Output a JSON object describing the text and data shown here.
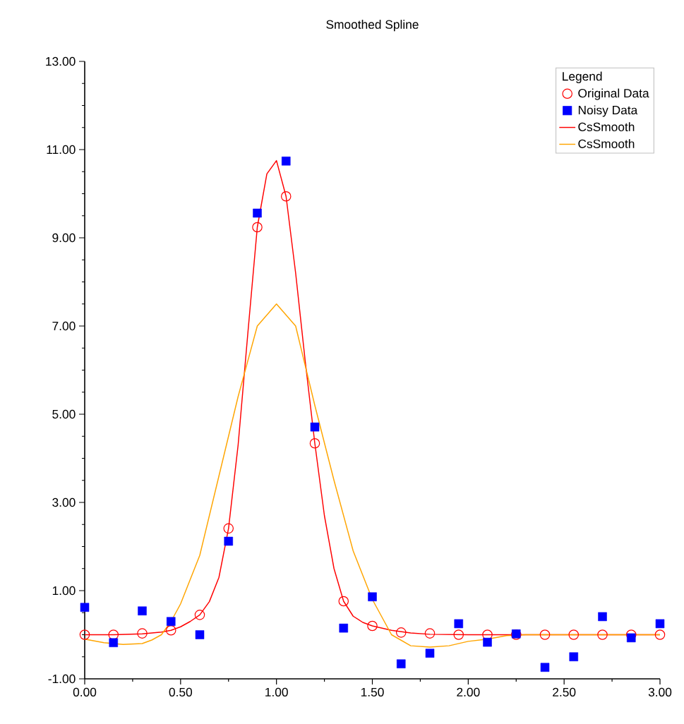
{
  "chart_data": {
    "type": "scatter",
    "title": "Smoothed Spline",
    "legend_title": "Legend",
    "legend": "top right",
    "xlim": [
      0,
      3
    ],
    "ylim": [
      -1,
      13
    ],
    "xticks": [
      {
        "value": 0,
        "label": "0.00"
      },
      {
        "value": 0.5,
        "label": "0.50"
      },
      {
        "value": 1,
        "label": "1.00"
      },
      {
        "value": 1.5,
        "label": "1.50"
      },
      {
        "value": 2,
        "label": "2.00"
      },
      {
        "value": 2.5,
        "label": "2.50"
      },
      {
        "value": 3,
        "label": "3.00"
      }
    ],
    "yticks": [
      {
        "value": -1,
        "label": "-1.00"
      },
      {
        "value": 1,
        "label": "1.00"
      },
      {
        "value": 3,
        "label": "3.00"
      },
      {
        "value": 5,
        "label": "5.00"
      },
      {
        "value": 7,
        "label": "7.00"
      },
      {
        "value": 9,
        "label": "9.00"
      },
      {
        "value": 11,
        "label": "11.00"
      },
      {
        "value": 13,
        "label": "13.00"
      }
    ],
    "series": [
      {
        "name": "Original Data",
        "marker": "circle",
        "color": "#ff0000",
        "x": [
          0,
          0.15,
          0.3,
          0.45,
          0.6,
          0.75,
          0.9,
          1.05,
          1.2,
          1.35,
          1.5,
          1.65,
          1.8,
          1.95,
          2.1,
          2.25,
          2.4,
          2.55,
          2.7,
          2.85,
          3.0
        ],
        "values": [
          0,
          0,
          0.03,
          0.1,
          0.45,
          2.41,
          9.24,
          9.94,
          4.34,
          0.76,
          0.2,
          0.05,
          0.03,
          0,
          0,
          0,
          0,
          0,
          0,
          0,
          0
        ]
      },
      {
        "name": "Noisy Data",
        "marker": "square",
        "color": "#0000ff",
        "x": [
          0,
          0.15,
          0.3,
          0.45,
          0.6,
          0.75,
          0.9,
          1.05,
          1.2,
          1.35,
          1.5,
          1.65,
          1.8,
          1.95,
          2.1,
          2.25,
          2.4,
          2.55,
          2.7,
          2.85,
          3.0
        ],
        "values": [
          0.62,
          -0.18,
          0.54,
          0.3,
          0,
          2.12,
          9.56,
          10.74,
          4.71,
          0.15,
          0.86,
          -0.66,
          -0.42,
          0.25,
          -0.17,
          0.02,
          -0.74,
          -0.5,
          0.41,
          -0.07,
          0.25
        ]
      },
      {
        "name": "CsSmooth",
        "type": "line",
        "marker": "none",
        "color": "#ff0000",
        "x": [
          0,
          0.15,
          0.3,
          0.4,
          0.45,
          0.5,
          0.55,
          0.6,
          0.65,
          0.7,
          0.75,
          0.8,
          0.85,
          0.9,
          0.95,
          1.0,
          1.05,
          1.1,
          1.15,
          1.2,
          1.25,
          1.3,
          1.35,
          1.4,
          1.45,
          1.5,
          1.6,
          1.7,
          1.8,
          2.0,
          2.5,
          3.0
        ],
        "values": [
          0,
          0,
          0.02,
          0.06,
          0.1,
          0.18,
          0.3,
          0.45,
          0.75,
          1.3,
          2.41,
          4.3,
          6.8,
          9.24,
          10.45,
          10.75,
          9.94,
          8.2,
          6.2,
          4.34,
          2.7,
          1.5,
          0.76,
          0.42,
          0.28,
          0.2,
          0.1,
          0.04,
          0.01,
          0,
          0,
          0
        ]
      },
      {
        "name": "CsSmooth",
        "type": "line",
        "marker": "none",
        "color": "#ffa500",
        "x": [
          0,
          0.1,
          0.2,
          0.3,
          0.35,
          0.4,
          0.45,
          0.5,
          0.6,
          0.7,
          0.8,
          0.9,
          1.0,
          1.1,
          1.2,
          1.3,
          1.4,
          1.5,
          1.6,
          1.7,
          1.8,
          1.9,
          2.0,
          2.1,
          2.2,
          2.3,
          2.5,
          3.0
        ],
        "values": [
          -0.1,
          -0.18,
          -0.22,
          -0.2,
          -0.12,
          0,
          0.3,
          0.7,
          1.8,
          3.6,
          5.4,
          7.0,
          7.5,
          7.0,
          5.2,
          3.5,
          1.9,
          0.8,
          0,
          -0.25,
          -0.28,
          -0.25,
          -0.15,
          -0.1,
          -0.02,
          0,
          0,
          0
        ]
      }
    ]
  }
}
